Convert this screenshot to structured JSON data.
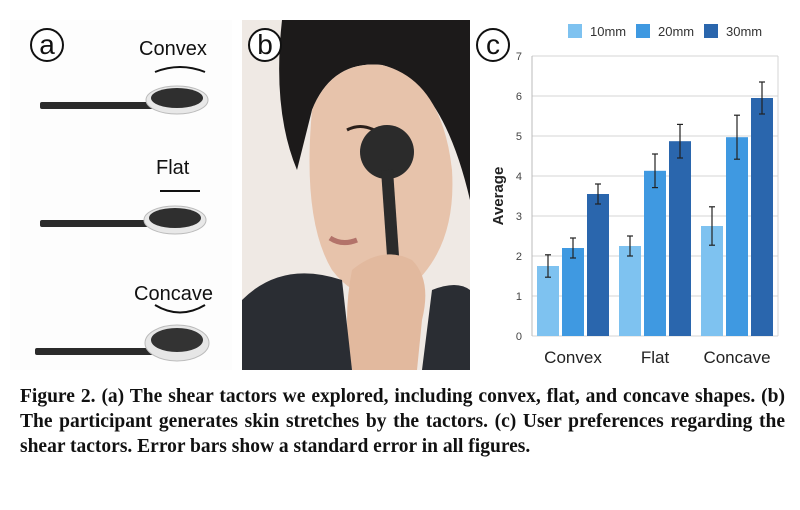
{
  "panel_a": {
    "label": "a",
    "tactors": [
      {
        "name": "Convex",
        "label": "Convex"
      },
      {
        "name": "Flat",
        "label": "Flat"
      },
      {
        "name": "Concave",
        "label": "Concave"
      }
    ]
  },
  "panel_b": {
    "label": "b"
  },
  "panel_c": {
    "label": "c"
  },
  "chart_data": {
    "type": "bar",
    "categories": [
      "Convex",
      "Flat",
      "Concave"
    ],
    "series": [
      {
        "name": "10mm",
        "values": [
          1.75,
          2.25,
          2.75
        ],
        "errors": [
          0.28,
          0.25,
          0.48
        ],
        "color": "#7ec2f0"
      },
      {
        "name": "20mm",
        "values": [
          2.2,
          4.13,
          4.97
        ],
        "errors": [
          0.25,
          0.42,
          0.55
        ],
        "color": "#3f99e1"
      },
      {
        "name": "30mm",
        "values": [
          3.55,
          4.87,
          5.95
        ],
        "errors": [
          0.25,
          0.42,
          0.4
        ],
        "color": "#2a66ad"
      }
    ],
    "ylabel": "Average",
    "xlabel": "",
    "ylim": [
      0,
      7
    ],
    "yticks": [
      0,
      1,
      2,
      3,
      4,
      5,
      6,
      7
    ],
    "grid": true,
    "legend_position": "top"
  },
  "caption": {
    "figure_label": "Figure 2.",
    "text": "(a) The shear tactors we explored, including convex, flat, and concave shapes. (b) The participant generates skin stretches by the tactors. (c) User preferences regarding the shear tactors. Error bars show a standard error in all figures."
  }
}
